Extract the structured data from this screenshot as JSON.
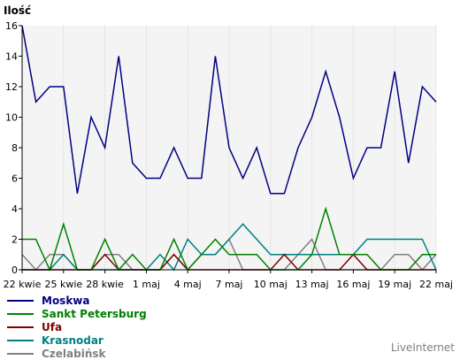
{
  "chart_data": {
    "type": "line",
    "ylabel": "Ilość",
    "xlabel": "",
    "title": "",
    "ylim": [
      0,
      16
    ],
    "yticks": [
      0,
      2,
      4,
      6,
      8,
      10,
      12,
      14,
      16
    ],
    "grid": false,
    "background_color": "#f4f4f4",
    "x": [
      "22 kwie",
      "23 kwie",
      "24 kwie",
      "25 kwie",
      "26 kwie",
      "27 kwie",
      "28 kwie",
      "29 kwie",
      "30 kwie",
      "1 maj",
      "2 maj",
      "3 maj",
      "4 maj",
      "5 maj",
      "6 maj",
      "7 maj",
      "8 maj",
      "9 maj",
      "10 maj",
      "11 maj",
      "12 maj",
      "13 maj",
      "14 maj",
      "15 maj",
      "16 maj",
      "17 maj",
      "18 maj",
      "19 maj",
      "20 maj",
      "21 maj",
      "22 maj"
    ],
    "xtick_labels": [
      "22 kwie",
      "25 kwie",
      "28 kwie",
      "1 maj",
      "4 maj",
      "7 maj",
      "10 maj",
      "13 maj",
      "16 maj",
      "19 maj",
      "22 maj"
    ],
    "xtick_every": 3,
    "series": [
      {
        "name": "Moskwa",
        "color": "#000080",
        "values": [
          16,
          11,
          12,
          12,
          5,
          10,
          8,
          14,
          7,
          6,
          6,
          8,
          6,
          6,
          14,
          8,
          6,
          8,
          5,
          5,
          8,
          10,
          13,
          10,
          6,
          8,
          8,
          13,
          7,
          12,
          11
        ]
      },
      {
        "name": "Sankt Petersburg",
        "color": "#008000",
        "values": [
          2,
          2,
          0,
          3,
          0,
          0,
          2,
          0,
          1,
          0,
          0,
          2,
          0,
          1,
          2,
          1,
          1,
          1,
          0,
          0,
          0,
          1,
          4,
          1,
          1,
          1,
          0,
          0,
          0,
          1,
          1
        ]
      },
      {
        "name": "Ufa",
        "color": "#800000",
        "values": [
          0,
          0,
          0,
          0,
          0,
          0,
          1,
          0,
          0,
          0,
          0,
          1,
          0,
          0,
          0,
          0,
          0,
          0,
          0,
          1,
          0,
          0,
          0,
          0,
          1,
          0,
          0,
          0,
          0,
          0,
          0
        ]
      },
      {
        "name": "Krasnodar",
        "color": "#008080",
        "values": [
          0,
          0,
          0,
          1,
          0,
          0,
          0,
          0,
          0,
          0,
          1,
          0,
          2,
          1,
          1,
          2,
          3,
          2,
          1,
          1,
          1,
          1,
          1,
          1,
          1,
          2,
          2,
          2,
          2,
          2,
          0
        ]
      },
      {
        "name": "Czelabińsk",
        "color": "#808080",
        "values": [
          1,
          0,
          1,
          1,
          0,
          0,
          1,
          1,
          0,
          0,
          0,
          1,
          0,
          1,
          1,
          2,
          0,
          0,
          0,
          0,
          1,
          2,
          0,
          0,
          0,
          0,
          0,
          1,
          1,
          0,
          1
        ]
      }
    ]
  },
  "footer": {
    "brand": "LiveInternet"
  }
}
